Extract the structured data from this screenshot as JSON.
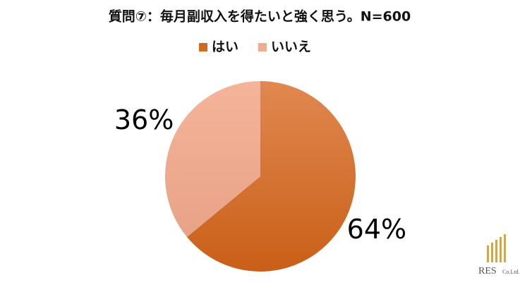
{
  "chart_data": {
    "type": "pie",
    "title": "質問⑦：毎月副収入を得たいと強く思う。N=600",
    "categories": [
      "はい",
      "いいえ"
    ],
    "values": [
      64,
      36
    ],
    "value_labels": [
      "64%",
      "36%"
    ],
    "colors": [
      "#d2691f",
      "#f3ab8d"
    ],
    "legend": "top"
  },
  "watermark": {
    "text": "RES",
    "subtext": "Co.Ltd."
  }
}
